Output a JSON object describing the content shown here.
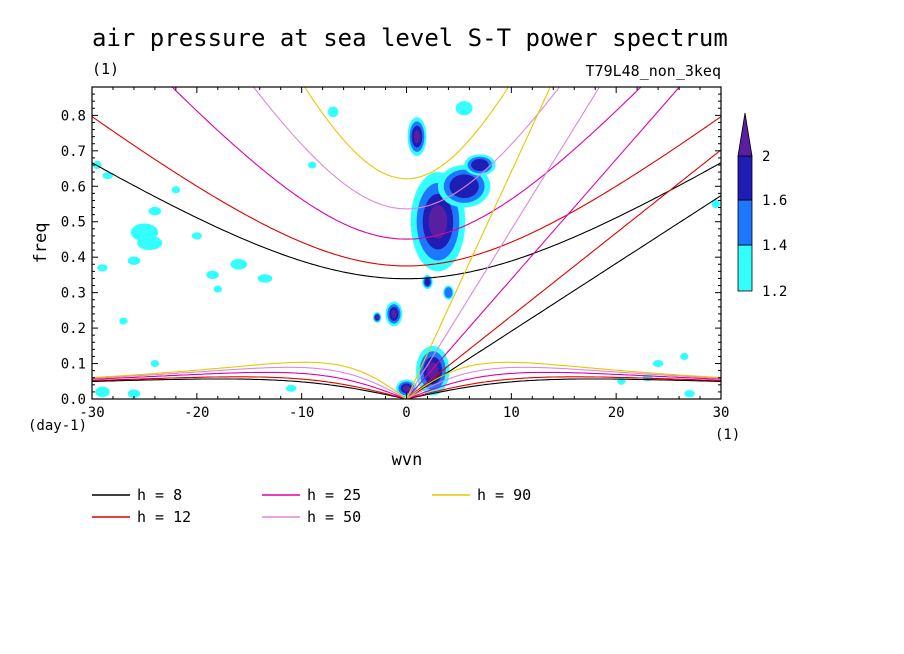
{
  "chart_data": {
    "type": "contour",
    "title": "air pressure at sea level S-T power spectrum",
    "subtitle_left": "(1)",
    "subtitle_right": "T79L48_non_3keq",
    "xlabel": "wvn",
    "ylabel": "freq",
    "x_unit": "(1)",
    "y_unit": "(day-1)",
    "xlim": [
      -30,
      30
    ],
    "ylim": [
      0,
      0.88
    ],
    "x_ticks": [
      -30,
      -20,
      -10,
      0,
      10,
      20,
      30
    ],
    "x_tick_labels": [
      "-30",
      "-20",
      "-10",
      "0",
      "10",
      "20",
      "30"
    ],
    "y_ticks": [
      0,
      0.1,
      0.2,
      0.3,
      0.4,
      0.5,
      0.6,
      0.7,
      0.8
    ],
    "y_tick_labels": [
      "0.0",
      "0.1",
      "0.2",
      "0.3",
      "0.4",
      "0.5",
      "0.6",
      "0.7",
      "0.8"
    ],
    "colorbar": {
      "levels": [
        1.2,
        1.4,
        1.6,
        2
      ],
      "level_labels": [
        "1.2",
        "1.4",
        "1.6",
        "2"
      ],
      "colors": [
        "#33ffff",
        "#1e78ff",
        "#1e1eb4",
        "#5a1ea0"
      ]
    },
    "dispersion_curves": [
      {
        "label": "h =  8",
        "h": 8,
        "color": "#000000"
      },
      {
        "label": "h = 12",
        "h": 12,
        "color": "#dd0000"
      },
      {
        "label": "h = 25",
        "h": 25,
        "color": "#dd00aa"
      },
      {
        "label": "h = 50",
        "h": 50,
        "color": "#dd88dd"
      },
      {
        "label": "h = 90",
        "h": 90,
        "color": "#e6c800"
      }
    ],
    "spectral_blobs": [
      {
        "x": 1.0,
        "y": 0.74,
        "rx": 0.9,
        "ry": 0.055,
        "level": 3
      },
      {
        "x": 3.0,
        "y": 0.5,
        "rx": 2.6,
        "ry": 0.14,
        "level": 3
      },
      {
        "x": 5.5,
        "y": 0.6,
        "rx": 2.5,
        "ry": 0.06,
        "level": 2
      },
      {
        "x": 7.0,
        "y": 0.66,
        "rx": 1.5,
        "ry": 0.03,
        "level": 2
      },
      {
        "x": 2.5,
        "y": 0.08,
        "rx": 1.6,
        "ry": 0.07,
        "level": 3
      },
      {
        "x": 0.0,
        "y": 0.03,
        "rx": 1.0,
        "ry": 0.025,
        "level": 3
      },
      {
        "x": -1.2,
        "y": 0.24,
        "rx": 0.8,
        "ry": 0.035,
        "level": 3
      },
      {
        "x": -2.8,
        "y": 0.23,
        "rx": 0.4,
        "ry": 0.015,
        "level": 3
      },
      {
        "x": 2.0,
        "y": 0.33,
        "rx": 0.5,
        "ry": 0.02,
        "level": 2
      },
      {
        "x": 4.0,
        "y": 0.3,
        "rx": 0.5,
        "ry": 0.02,
        "level": 1
      },
      {
        "x": 5.5,
        "y": 0.82,
        "rx": 0.8,
        "ry": 0.02,
        "level": 0
      },
      {
        "x": -7.0,
        "y": 0.81,
        "rx": 0.5,
        "ry": 0.015,
        "level": 0
      },
      {
        "x": -25.0,
        "y": 0.47,
        "rx": 1.3,
        "ry": 0.025,
        "level": 0
      },
      {
        "x": -24.5,
        "y": 0.44,
        "rx": 1.2,
        "ry": 0.02,
        "level": 0
      },
      {
        "x": -16.0,
        "y": 0.38,
        "rx": 0.8,
        "ry": 0.015,
        "level": 0
      },
      {
        "x": -26.0,
        "y": 0.39,
        "rx": 0.6,
        "ry": 0.012,
        "level": 0
      },
      {
        "x": -24.0,
        "y": 0.53,
        "rx": 0.6,
        "ry": 0.012,
        "level": 0
      },
      {
        "x": -29.5,
        "y": 0.66,
        "rx": 0.4,
        "ry": 0.012,
        "level": 0
      },
      {
        "x": -28.5,
        "y": 0.63,
        "rx": 0.5,
        "ry": 0.01,
        "level": 0
      },
      {
        "x": -18.5,
        "y": 0.35,
        "rx": 0.6,
        "ry": 0.012,
        "level": 0
      },
      {
        "x": -13.5,
        "y": 0.34,
        "rx": 0.7,
        "ry": 0.012,
        "level": 0
      },
      {
        "x": -29.0,
        "y": 0.37,
        "rx": 0.5,
        "ry": 0.01,
        "level": 0
      },
      {
        "x": -20.0,
        "y": 0.46,
        "rx": 0.5,
        "ry": 0.01,
        "level": 0
      },
      {
        "x": -18.0,
        "y": 0.31,
        "rx": 0.4,
        "ry": 0.01,
        "level": 0
      },
      {
        "x": -27.0,
        "y": 0.22,
        "rx": 0.4,
        "ry": 0.01,
        "level": 0
      },
      {
        "x": -29.0,
        "y": 0.02,
        "rx": 0.7,
        "ry": 0.015,
        "level": 0
      },
      {
        "x": -24.0,
        "y": 0.1,
        "rx": 0.4,
        "ry": 0.01,
        "level": 0
      },
      {
        "x": -26.0,
        "y": 0.015,
        "rx": 0.6,
        "ry": 0.012,
        "level": 0
      },
      {
        "x": 24.0,
        "y": 0.1,
        "rx": 0.5,
        "ry": 0.01,
        "level": 0
      },
      {
        "x": 26.5,
        "y": 0.12,
        "rx": 0.4,
        "ry": 0.01,
        "level": 0
      },
      {
        "x": 29.5,
        "y": 0.55,
        "rx": 0.4,
        "ry": 0.012,
        "level": 0
      },
      {
        "x": 20.5,
        "y": 0.05,
        "rx": 0.4,
        "ry": 0.01,
        "level": 0
      },
      {
        "x": 23.0,
        "y": 0.06,
        "rx": 0.5,
        "ry": 0.01,
        "level": 0
      },
      {
        "x": 27.0,
        "y": 0.015,
        "rx": 0.5,
        "ry": 0.01,
        "level": 0
      },
      {
        "x": -11.0,
        "y": 0.03,
        "rx": 0.5,
        "ry": 0.01,
        "level": 0
      },
      {
        "x": -9.0,
        "y": 0.66,
        "rx": 0.4,
        "ry": 0.01,
        "level": 0
      },
      {
        "x": -22.0,
        "y": 0.59,
        "rx": 0.4,
        "ry": 0.01,
        "level": 0
      }
    ]
  }
}
